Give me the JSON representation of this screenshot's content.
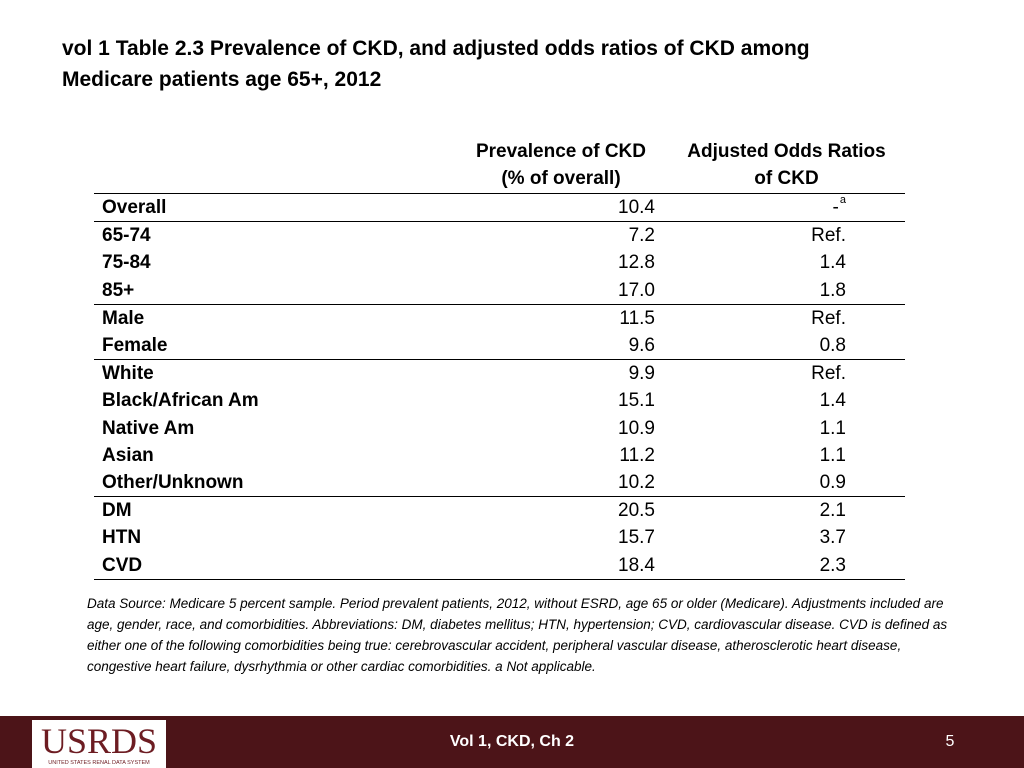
{
  "title_line1": "vol 1 Table 2.3 Prevalence of CKD, and adjusted odds ratios of CKD among",
  "title_line2": "Medicare patients age 65+, 2012",
  "table": {
    "headers": {
      "prevalence_line1": "Prevalence of CKD",
      "prevalence_line2": "(% of overall)",
      "odds_line1": "Adjusted Odds Ratios",
      "odds_line2": "of CKD"
    },
    "rows": [
      {
        "label": "Overall",
        "prevalence": "10.4",
        "odds": "-",
        "odds_sup": "a"
      },
      {
        "label": "65-74",
        "prevalence": "7.2",
        "odds": "Ref."
      },
      {
        "label": "75-84",
        "prevalence": "12.8",
        "odds": "1.4"
      },
      {
        "label": "85+",
        "prevalence": "17.0",
        "odds": "1.8"
      },
      {
        "label": "Male",
        "prevalence": "11.5",
        "odds": "Ref."
      },
      {
        "label": "Female",
        "prevalence": "9.6",
        "odds": "0.8"
      },
      {
        "label": "White",
        "prevalence": "9.9",
        "odds": "Ref."
      },
      {
        "label": "Black/African Am",
        "prevalence": "15.1",
        "odds": "1.4"
      },
      {
        "label": "Native Am",
        "prevalence": "10.9",
        "odds": "1.1"
      },
      {
        "label": "Asian",
        "prevalence": "11.2",
        "odds": "1.1"
      },
      {
        "label": "Other/Unknown",
        "prevalence": "10.2",
        "odds": "0.9"
      },
      {
        "label": "DM",
        "prevalence": "20.5",
        "odds": "2.1"
      },
      {
        "label": "HTN",
        "prevalence": "15.7",
        "odds": "3.7"
      },
      {
        "label": "CVD",
        "prevalence": "18.4",
        "odds": "2.3"
      }
    ]
  },
  "footnote": "Data Source: Medicare 5 percent sample. Period prevalent patients, 2012, without ESRD, age 65 or older (Medicare). Adjustments included are age, gender, race, and comorbidities. Abbreviations: DM, diabetes mellitus; HTN, hypertension; CVD, cardiovascular disease. CVD is defined as either one of the following comorbidities being true: cerebrovascular accident, peripheral vascular disease, atherosclerotic heart disease, congestive heart failure, dysrhythmia or other cardiac comorbidities. a Not applicable.",
  "footer": {
    "logo_text": "USRDS",
    "logo_subtext": "UNITED STATES RENAL DATA SYSTEM",
    "center_text": "Vol 1, CKD, Ch 2",
    "page_number": "5"
  },
  "colors": {
    "footer_bar": "#4c1418",
    "logo_text": "#6d1c22"
  }
}
